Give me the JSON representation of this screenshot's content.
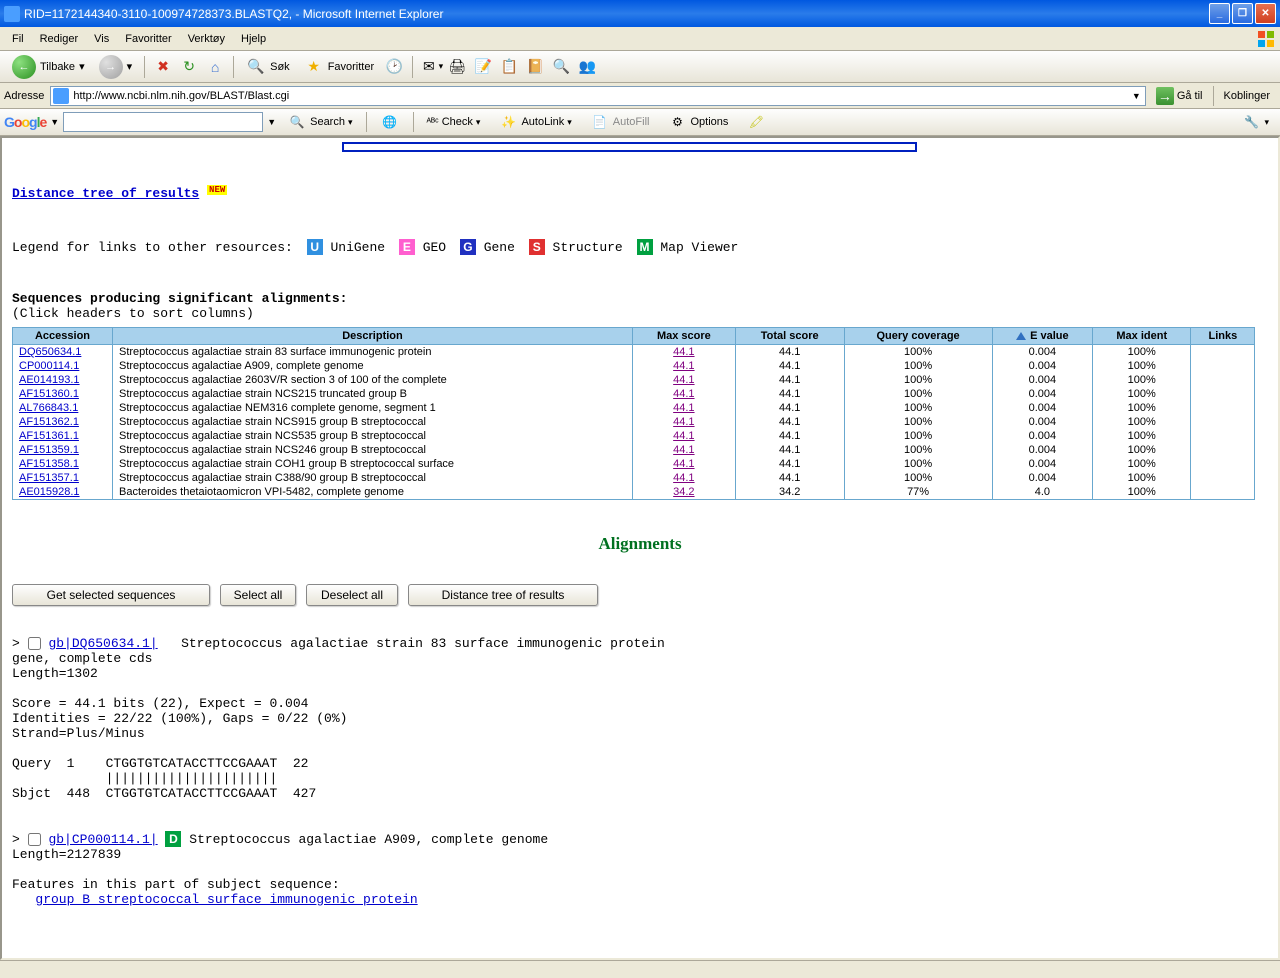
{
  "window": {
    "title": "RID=1172144340-3110-100974728373.BLASTQ2, - Microsoft Internet Explorer"
  },
  "menubar": {
    "items": [
      "Fil",
      "Rediger",
      "Vis",
      "Favoritter",
      "Verktøy",
      "Hjelp"
    ]
  },
  "toolbar": {
    "back": "Tilbake",
    "search": "Søk",
    "favorites": "Favoritter"
  },
  "addressbar": {
    "label": "Adresse",
    "url": "http://www.ncbi.nlm.nih.gov/BLAST/Blast.cgi",
    "go": "Gå til",
    "links": "Koblinger"
  },
  "googlebar": {
    "logo_html": "Google",
    "search": "Search",
    "check": "Check",
    "autolink": "AutoLink",
    "autofill": "AutoFill",
    "options": "Options"
  },
  "page": {
    "distance_link": "Distance tree of results",
    "new_badge": "NEW",
    "legend_label": "Legend for links to other resources:",
    "legend_items": [
      {
        "letter": "U",
        "bg": "#3090e0",
        "label": "UniGene"
      },
      {
        "letter": "E",
        "bg": "#ff5fcf",
        "label": "GEO"
      },
      {
        "letter": "G",
        "bg": "#2030c0",
        "label": "Gene"
      },
      {
        "letter": "S",
        "bg": "#e03030",
        "label": "Structure"
      },
      {
        "letter": "M",
        "bg": "#00a040",
        "label": "Map Viewer"
      }
    ],
    "seq_heading": "Sequences producing significant alignments:",
    "seq_sub": "(Click headers to sort columns)",
    "table": {
      "columns": [
        "Accession",
        "Description",
        "Max score",
        "Total score",
        "Query coverage",
        "E value",
        "Max ident",
        "Links"
      ],
      "sort_col_index": 5,
      "rows": [
        {
          "acc": "DQ650634.1",
          "desc": "Streptococcus agalactiae strain 83 surface immunogenic protein",
          "maxs": "44.1",
          "tots": "44.1",
          "qcov": "100%",
          "eval": "0.004",
          "mident": "100%"
        },
        {
          "acc": "CP000114.1",
          "desc": "Streptococcus agalactiae A909, complete genome",
          "maxs": "44.1",
          "tots": "44.1",
          "qcov": "100%",
          "eval": "0.004",
          "mident": "100%"
        },
        {
          "acc": "AE014193.1",
          "desc": "Streptococcus agalactiae 2603V/R section 3 of 100 of the complete",
          "maxs": "44.1",
          "tots": "44.1",
          "qcov": "100%",
          "eval": "0.004",
          "mident": "100%"
        },
        {
          "acc": "AF151360.1",
          "desc": "Streptococcus agalactiae strain NCS215 truncated group B",
          "maxs": "44.1",
          "tots": "44.1",
          "qcov": "100%",
          "eval": "0.004",
          "mident": "100%"
        },
        {
          "acc": "AL766843.1",
          "desc": "Streptococcus agalactiae NEM316 complete genome, segment 1",
          "maxs": "44.1",
          "tots": "44.1",
          "qcov": "100%",
          "eval": "0.004",
          "mident": "100%"
        },
        {
          "acc": "AF151362.1",
          "desc": "Streptococcus agalactiae strain NCS915 group B streptococcal",
          "maxs": "44.1",
          "tots": "44.1",
          "qcov": "100%",
          "eval": "0.004",
          "mident": "100%"
        },
        {
          "acc": "AF151361.1",
          "desc": "Streptococcus agalactiae strain NCS535 group B streptococcal",
          "maxs": "44.1",
          "tots": "44.1",
          "qcov": "100%",
          "eval": "0.004",
          "mident": "100%"
        },
        {
          "acc": "AF151359.1",
          "desc": "Streptococcus agalactiae strain NCS246 group B streptococcal",
          "maxs": "44.1",
          "tots": "44.1",
          "qcov": "100%",
          "eval": "0.004",
          "mident": "100%"
        },
        {
          "acc": "AF151358.1",
          "desc": "Streptococcus agalactiae strain COH1 group B streptococcal surface",
          "maxs": "44.1",
          "tots": "44.1",
          "qcov": "100%",
          "eval": "0.004",
          "mident": "100%"
        },
        {
          "acc": "AF151357.1",
          "desc": "Streptococcus agalactiae strain C388/90 group B streptococcal",
          "maxs": "44.1",
          "tots": "44.1",
          "qcov": "100%",
          "eval": "0.004",
          "mident": "100%"
        },
        {
          "acc": "AE015928.1",
          "desc": "Bacteroides thetaiotaomicron VPI-5482, complete genome",
          "maxs": "34.2",
          "tots": "34.2",
          "qcov": "77%",
          "eval": "4.0",
          "mident": "100%"
        }
      ]
    },
    "alignments_heading": "Alignments",
    "buttons": {
      "get_selected": "Get selected sequences",
      "select_all": "Select all",
      "deselect_all": "Deselect all",
      "distance_tree": "Distance tree of results"
    },
    "align1": {
      "prefix": ">",
      "link": "gb|DQ650634.1|",
      "desc": "Streptococcus agalactiae strain 83 surface immunogenic protein",
      "sub": "gene, complete cds",
      "length": "Length=1302",
      "stats1": " Score = 44.1 bits (22),  Expect = 0.004",
      "stats2": " Identities = 22/22 (100%), Gaps = 0/22 (0%)",
      "strand": " Strand=Plus/Minus",
      "query": "Query  1    CTGGTGTCATACCTTCCGAAAT  22",
      "match": "            ||||||||||||||||||||||",
      "sbjct": "Sbjct  448  CTGGTGTCATACCTTCCGAAAT  427"
    },
    "align2": {
      "prefix": ">",
      "link": "gb|CP000114.1|",
      "icon_letter": "D",
      "icon_bg": "#00a040",
      "desc": "Streptococcus agalactiae A909, complete genome",
      "length": "Length=2127839",
      "features_label": " Features in this part of subject sequence:",
      "feature_link": "group B streptococcal surface immunogenic protein"
    }
  }
}
